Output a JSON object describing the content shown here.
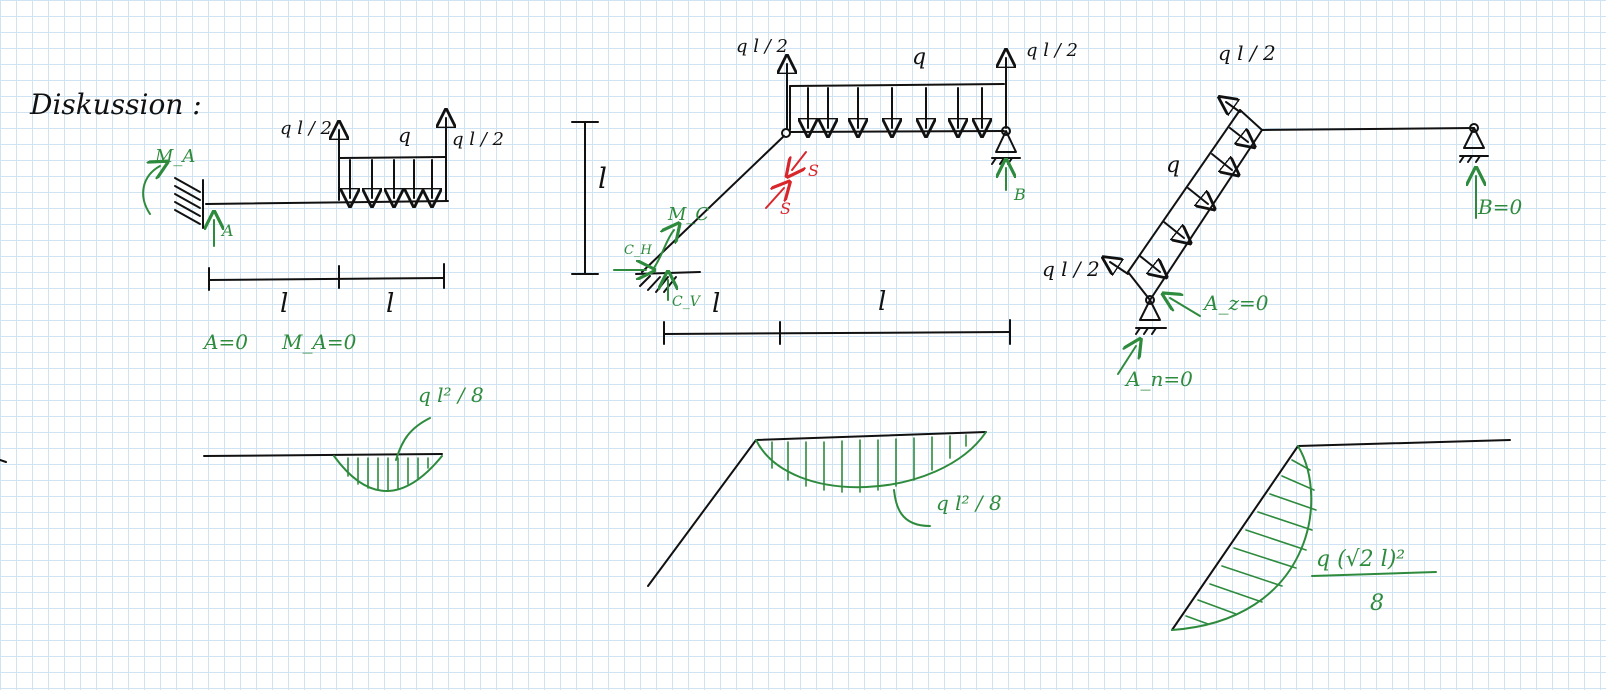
{
  "header": {
    "title": "Diskussion :"
  },
  "colors": {
    "ink": "#111111",
    "annotation": "#2e8b3d",
    "highlight": "#d9262b",
    "grid": "#cfe3f2"
  },
  "beam1": {
    "moment_label": "M_A",
    "moment_sub": "A",
    "support_label": "A",
    "reaction_left": "q l / 2",
    "reaction_right": "q l / 2",
    "load_label": "q",
    "dim_left": "l",
    "dim_right": "l",
    "result_A": "A=0",
    "result_MA": "M_A=0",
    "moment_max": "q l² / 8"
  },
  "frame2": {
    "reaction_left": "q l / 2",
    "reaction_right": "q l / 2",
    "load_label": "q",
    "height_label": "l",
    "moment_label": "M_C",
    "ch_label": "C_H",
    "cv_label": "C_V",
    "force_label": "S",
    "support_label": "B",
    "dim_left": "l",
    "dim_right": "l",
    "moment_max": "q l² / 8"
  },
  "frame3": {
    "reaction_top": "q l / 2",
    "reaction_bottom": "q l / 2",
    "load_label": "q",
    "b_result": "B=0",
    "az_result": "A_z=0",
    "an_result": "A_n=0",
    "moment_max_num": "q (√2 l)²",
    "moment_max_den": "8"
  }
}
